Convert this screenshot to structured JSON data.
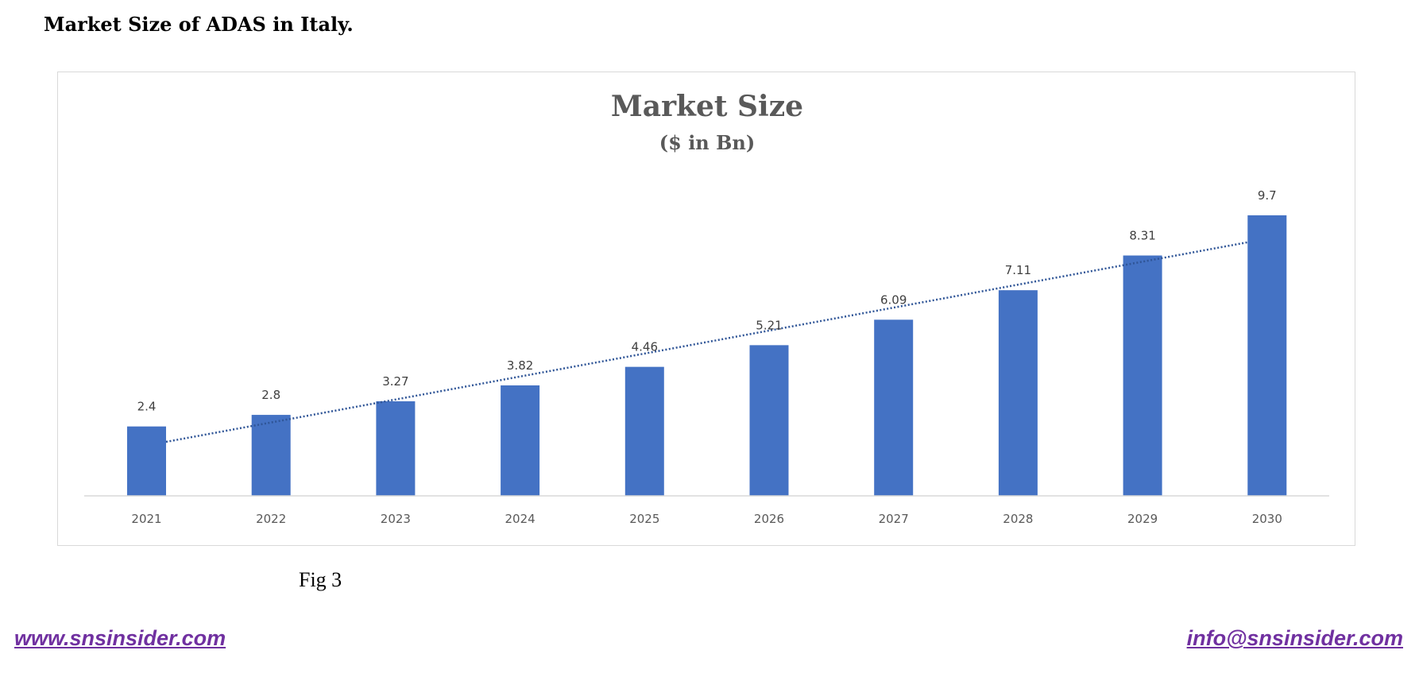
{
  "document": {
    "title": "Market Size of ADAS in Italy.",
    "figure_caption": "Fig 3",
    "website_link": "www.snsinsider.com",
    "email_link": "info@snsinsider.com"
  },
  "colors": {
    "bar": "#4472c4",
    "trendline": "#2f5597",
    "link": "#7030a0",
    "title": "#595959",
    "label": "#404040"
  },
  "chart_data": {
    "type": "bar",
    "title": "Market Size",
    "subtitle": "($ in Bn)",
    "xlabel": "",
    "ylabel": "",
    "categories": [
      "2021",
      "2022",
      "2023",
      "2024",
      "2025",
      "2026",
      "2027",
      "2028",
      "2029",
      "2030"
    ],
    "values": [
      2.4,
      2.8,
      3.27,
      3.82,
      4.46,
      5.21,
      6.09,
      7.11,
      8.31,
      9.7
    ],
    "data_labels": [
      "2.4",
      "2.8",
      "3.27",
      "3.82",
      "4.46",
      "5.21",
      "6.09",
      "7.11",
      "8.31",
      "9.7"
    ],
    "trendline": "linear, dotted",
    "grid": false,
    "legend": "none"
  }
}
